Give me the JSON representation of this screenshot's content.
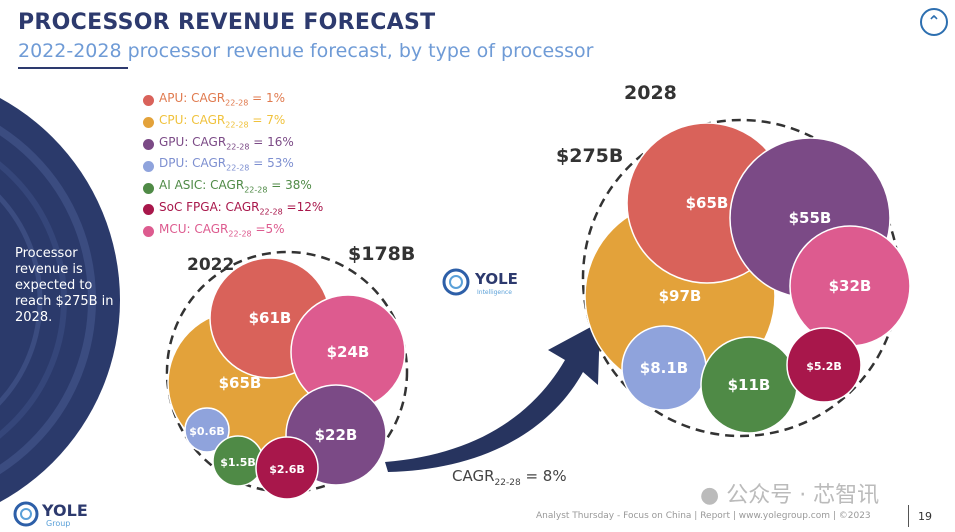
{
  "header": {
    "title": "PROCESSOR REVENUE FORECAST",
    "subtitle": "2022-2028 processor revenue forecast, by type of processor",
    "up_icon": "chevron-up-icon"
  },
  "side_note": "Processor revenue is expected to reach $275B in 2028.",
  "legend": [
    {
      "name": "APU",
      "prefix": "APU: CAGR",
      "sub": "22-28",
      "suffix": " = 1%",
      "color": "#d9625a",
      "text_color": "#e07a4e"
    },
    {
      "name": "CPU",
      "prefix": "CPU: CAGR",
      "sub": "22-28",
      "suffix": " = 7%",
      "color": "#e3a23a",
      "text_color": "#f0c23c"
    },
    {
      "name": "GPU",
      "prefix": "GPU: CAGR",
      "sub": "22-28",
      "suffix": " = 16%",
      "color": "#7b4a86",
      "text_color": "#7b4a86"
    },
    {
      "name": "DPU",
      "prefix": "DPU: CAGR",
      "sub": "22-28",
      "suffix": " = 53%",
      "color": "#8fa3dc",
      "text_color": "#7d8fd0"
    },
    {
      "name": "AI ASIC",
      "prefix": "AI ASIC: CAGR",
      "sub": "22-28",
      "suffix": " = 38%",
      "color": "#4f8a46",
      "text_color": "#4f8a46"
    },
    {
      "name": "SoC FPGA",
      "prefix": "SoC FPGA: CAGR",
      "sub": "22-28",
      "suffix": " =12%",
      "color": "#a8174b",
      "text_color": "#a8174b"
    },
    {
      "name": "MCU",
      "prefix": "MCU: CAGR",
      "sub": "22-28",
      "suffix": " =5%",
      "color": "#dd5b8f",
      "text_color": "#dd5b8f"
    }
  ],
  "chart_data": {
    "type": "bubble",
    "groups": [
      {
        "year": "2022",
        "total": "$178B",
        "bubbles": [
          {
            "category": "CPU",
            "value": 65,
            "label": "$65B"
          },
          {
            "category": "APU",
            "value": 61,
            "label": "$61B"
          },
          {
            "category": "MCU",
            "value": 24,
            "label": "$24B"
          },
          {
            "category": "GPU",
            "value": 22,
            "label": "$22B"
          },
          {
            "category": "DPU",
            "value": 0.6,
            "label": "$0.6B"
          },
          {
            "category": "AI ASIC",
            "value": 1.5,
            "label": "$1.5B"
          },
          {
            "category": "SoC FPGA",
            "value": 2.6,
            "label": "$2.6B"
          }
        ]
      },
      {
        "year": "2028",
        "total": "$275B",
        "bubbles": [
          {
            "category": "CPU",
            "value": 97,
            "label": "$97B"
          },
          {
            "category": "APU",
            "value": 65,
            "label": "$65B"
          },
          {
            "category": "GPU",
            "value": 55,
            "label": "$55B"
          },
          {
            "category": "MCU",
            "value": 32,
            "label": "$32B"
          },
          {
            "category": "DPU",
            "value": 8.1,
            "label": "$8.1B"
          },
          {
            "category": "AI ASIC",
            "value": 11,
            "label": "$11B"
          },
          {
            "category": "SoC FPGA",
            "value": 5.2,
            "label": "$5.2B"
          }
        ]
      }
    ],
    "overall_cagr": {
      "prefix": "CAGR",
      "sub": "22-28",
      "suffix": " = 8%"
    }
  },
  "logos": {
    "center": "YOLE",
    "center_sub": "Intelligence",
    "bottom": "YOLE",
    "bottom_sub": "Group"
  },
  "watermark": "公众号 · 芯智讯",
  "footer": {
    "text": "Analyst Thursday - Focus on China | Report | www.yolegroup.com | ©2023",
    "page": "19"
  }
}
